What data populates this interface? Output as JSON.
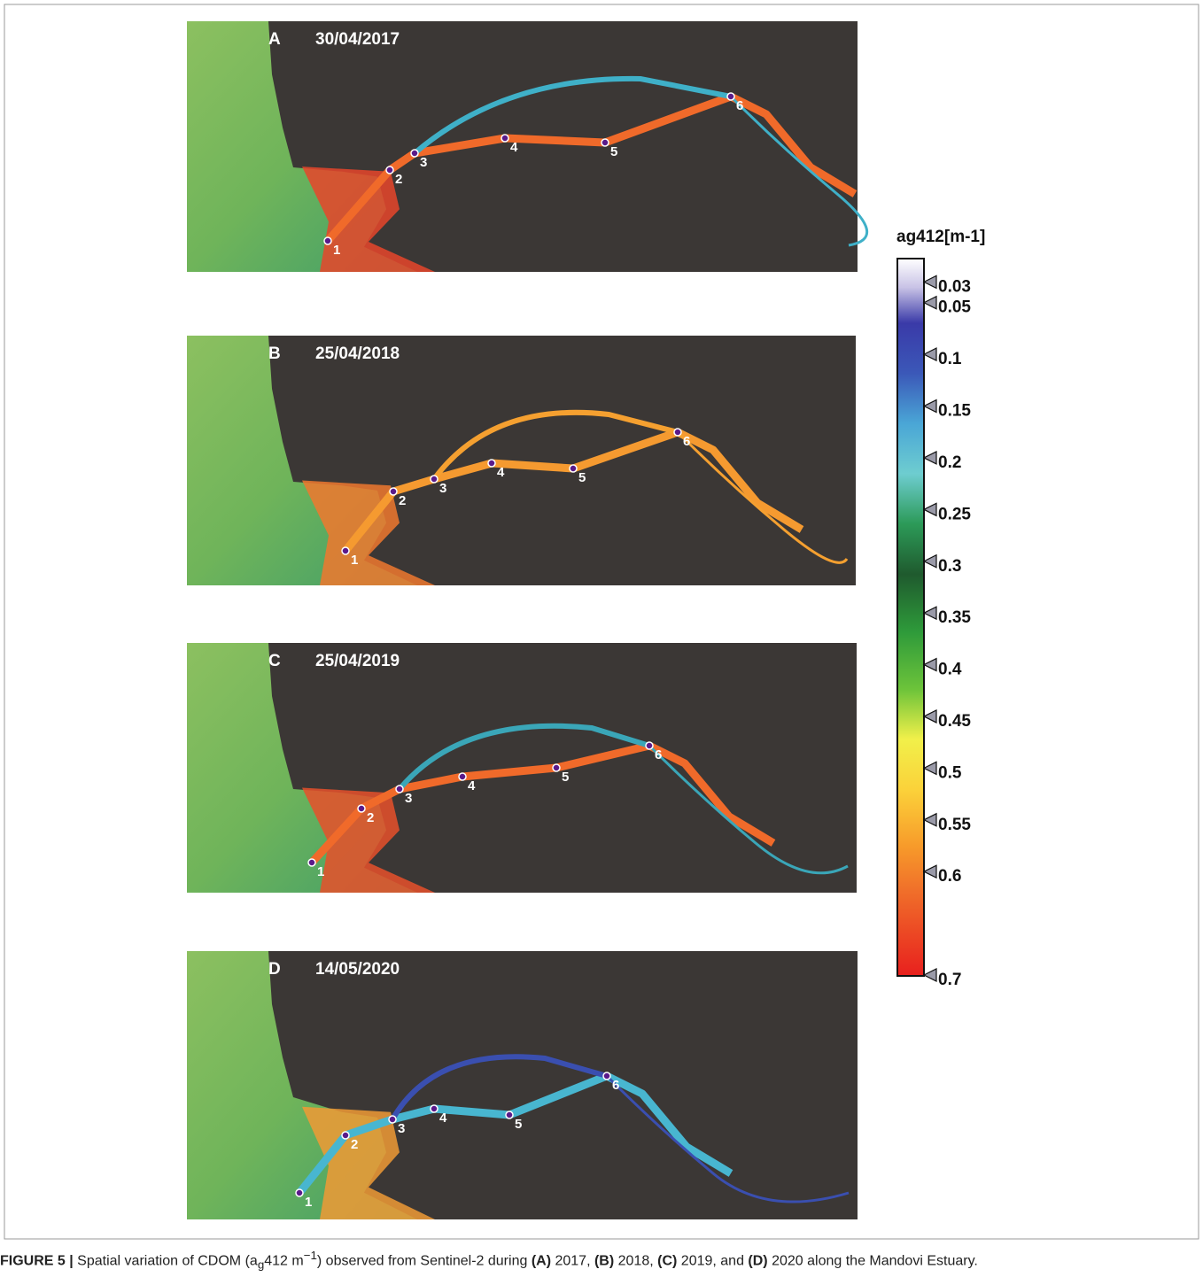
{
  "panels": [
    {
      "letter": "A",
      "date": "30/04/2017",
      "stations": [
        "1",
        "2",
        "3",
        "4",
        "5",
        "6"
      ]
    },
    {
      "letter": "B",
      "date": "25/04/2018",
      "stations": [
        "1",
        "2",
        "3",
        "4",
        "5",
        "6"
      ]
    },
    {
      "letter": "C",
      "date": "25/04/2019",
      "stations": [
        "1",
        "2",
        "3",
        "4",
        "5",
        "6"
      ]
    },
    {
      "letter": "D",
      "date": "14/05/2020",
      "stations": [
        "1",
        "2",
        "3",
        "4",
        "5",
        "6"
      ]
    }
  ],
  "colorbar": {
    "label": "ag412[m-1]",
    "lim": [
      0.01,
      0.7
    ],
    "ticks": [
      0.03,
      0.05,
      0.1,
      0.15,
      0.2,
      0.25,
      0.3,
      0.35,
      0.4,
      0.45,
      0.5,
      0.55,
      0.6,
      0.7
    ]
  },
  "caption": {
    "figure": "FIGURE 5 |",
    "text1": "Spatial variation of CDOM (a",
    "sub": "g",
    "text2": "412 m",
    "sup": "−1",
    "text3": ") observed from Sentinel-2 during ",
    "a": "(A)",
    "t_a": " 2017, ",
    "b": "(B)",
    "t_b": " 2018, ",
    "c": "(C)",
    "t_c": " 2019, and ",
    "d": "(D)",
    "t_d": " 2020 along the Mandovi Estuary."
  }
}
